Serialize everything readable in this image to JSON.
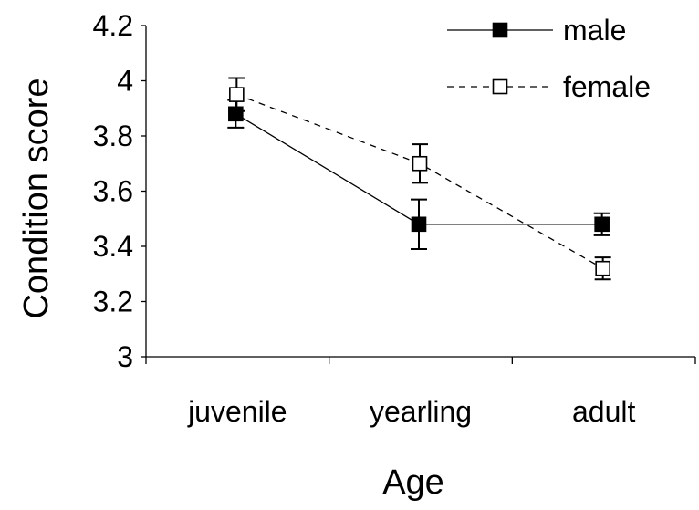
{
  "chart_data": {
    "type": "line",
    "title": "",
    "xlabel": "Age",
    "ylabel": "Condition score",
    "categories": [
      "juvenile",
      "yearling",
      "adult"
    ],
    "ylim": [
      3,
      4.2
    ],
    "yticks": [
      "3",
      "3.2",
      "3.4",
      "3.6",
      "3.8",
      "4",
      "4.2"
    ],
    "grid": false,
    "legend_position": "top-right",
    "series": [
      {
        "name": "male",
        "values": [
          3.88,
          3.48,
          3.48
        ],
        "error": [
          0.05,
          0.09,
          0.04
        ],
        "marker": "filled-square",
        "line_style": "solid",
        "color": "#000000"
      },
      {
        "name": "female",
        "values": [
          3.95,
          3.7,
          3.32
        ],
        "error": [
          0.06,
          0.07,
          0.04
        ],
        "marker": "open-square",
        "line_style": "dashed",
        "color": "#000000"
      }
    ]
  }
}
